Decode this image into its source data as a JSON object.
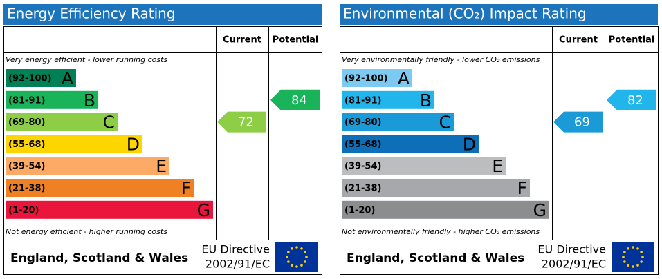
{
  "panels": [
    {
      "title": "Energy Efficiency Rating",
      "headers": [
        "Current",
        "Potential"
      ],
      "top_note": "Very energy efficient - lower running costs",
      "bottom_note": "Not energy efficient - higher running costs",
      "bands": [
        {
          "range": "(92-100)",
          "letter": "A",
          "color": "#008054"
        },
        {
          "range": "(81-91)",
          "letter": "B",
          "color": "#19b459"
        },
        {
          "range": "(69-80)",
          "letter": "C",
          "color": "#8dce46"
        },
        {
          "range": "(55-68)",
          "letter": "D",
          "color": "#ffd500"
        },
        {
          "range": "(39-54)",
          "letter": "E",
          "color": "#fcaa65"
        },
        {
          "range": "(21-38)",
          "letter": "F",
          "color": "#ef8023"
        },
        {
          "range": "(1-20)",
          "letter": "G",
          "color": "#e9153b"
        }
      ],
      "current": 72,
      "potential": 84,
      "footer": "England, Scotland & Wales",
      "directive": [
        "EU Directive",
        "2002/91/EC"
      ]
    },
    {
      "title": "Environmental (CO₂) Impact Rating",
      "headers": [
        "Current",
        "Potential"
      ],
      "top_note": "Very environmentally friendly - lower CO₂ emissions",
      "bottom_note": "Not environmentally friendly - higher CO₂ emissions",
      "bands": [
        {
          "range": "(92-100)",
          "letter": "A",
          "color": "#7ccaf2"
        },
        {
          "range": "(81-91)",
          "letter": "B",
          "color": "#22b5eb"
        },
        {
          "range": "(69-80)",
          "letter": "C",
          "color": "#1a9ad6"
        },
        {
          "range": "(55-68)",
          "letter": "D",
          "color": "#0c6fb8"
        },
        {
          "range": "(39-54)",
          "letter": "E",
          "color": "#bbbdbf"
        },
        {
          "range": "(21-38)",
          "letter": "F",
          "color": "#a6a8ab"
        },
        {
          "range": "(1-20)",
          "letter": "G",
          "color": "#8b8d8f"
        }
      ],
      "current": 69,
      "potential": 82,
      "footer": "England, Scotland & Wales",
      "directive": [
        "EU Directive",
        "2002/91/EC"
      ]
    }
  ]
}
